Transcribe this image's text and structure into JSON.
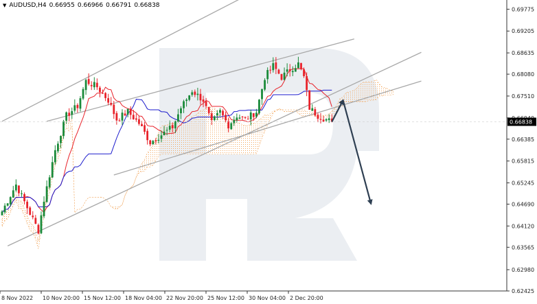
{
  "header": {
    "symbol": "AUDUSD,H4",
    "open": "0.66955",
    "high": "0.66966",
    "low": "0.66791",
    "close": "0.66838"
  },
  "colors": {
    "bull_candle": "#1a8a3a",
    "bear_candle": "#e8222a",
    "tenkan": "#e8222a",
    "kijun": "#1a1acc",
    "cloud": "#f2a860",
    "channel": "#a8a8a8",
    "arrow": "#2e3f52",
    "price_label_bg": "#000000",
    "price_label_fg": "#ffffff",
    "watermark": "#e9ecf1"
  },
  "chart_data": {
    "type": "candlestick",
    "title": "AUDUSD,H4",
    "ylim": [
      0.62425,
      0.70015
    ],
    "yticks": [
      "0.69775",
      "0.69205",
      "0.68635",
      "0.68080",
      "0.67510",
      "0.66940",
      "0.66385",
      "0.65815",
      "0.65245",
      "0.64690",
      "0.64120",
      "0.63565",
      "0.62980",
      "0.62425"
    ],
    "current_price": "0.66838",
    "xticks": [
      "8 Nov 2022",
      "10 Nov 20:00",
      "15 Nov 12:00",
      "18 Nov 04:00",
      "22 Nov 20:00",
      "25 Nov 12:00",
      "30 Nov 04:00",
      "2 Dec 20:00"
    ],
    "anchors": [
      [
        0,
        0.645
      ],
      [
        5,
        0.652
      ],
      [
        10,
        0.6445
      ],
      [
        13,
        0.64
      ],
      [
        15,
        0.648
      ],
      [
        19,
        0.661
      ],
      [
        23,
        0.67
      ],
      [
        27,
        0.6725
      ],
      [
        30,
        0.679
      ],
      [
        34,
        0.6775
      ],
      [
        38,
        0.674
      ],
      [
        41,
        0.669
      ],
      [
        45,
        0.671
      ],
      [
        49,
        0.668
      ],
      [
        53,
        0.663
      ],
      [
        57,
        0.665
      ],
      [
        61,
        0.667
      ],
      [
        64,
        0.672
      ],
      [
        68,
        0.6765
      ],
      [
        72,
        0.674
      ],
      [
        75,
        0.668
      ],
      [
        78,
        0.671
      ],
      [
        81,
        0.6675
      ],
      [
        84,
        0.67
      ],
      [
        87,
        0.669
      ],
      [
        91,
        0.671
      ],
      [
        94,
        0.68
      ],
      [
        97,
        0.683
      ],
      [
        100,
        0.68
      ],
      [
        103,
        0.682
      ],
      [
        106,
        0.6835
      ],
      [
        108,
        0.68
      ],
      [
        110,
        0.672
      ],
      [
        113,
        0.67
      ],
      [
        116,
        0.669
      ],
      [
        118,
        0.66838
      ]
    ],
    "candle_count": 119,
    "channels": [
      {
        "from": [
          0,
          0.6685
        ],
        "to": [
          88,
          0.7015
        ]
      },
      {
        "from": [
          16,
          0.6685
        ],
        "to": [
          126,
          0.69
        ]
      },
      {
        "from": [
          2,
          0.636
        ],
        "to": [
          150,
          0.6865
        ]
      },
      {
        "from": [
          40,
          0.6545
        ],
        "to": [
          150,
          0.679
        ]
      }
    ],
    "forecast": {
      "points": [
        [
          118,
          0.66838
        ],
        [
          122,
          0.674
        ],
        [
          132,
          0.647
        ]
      ]
    }
  }
}
